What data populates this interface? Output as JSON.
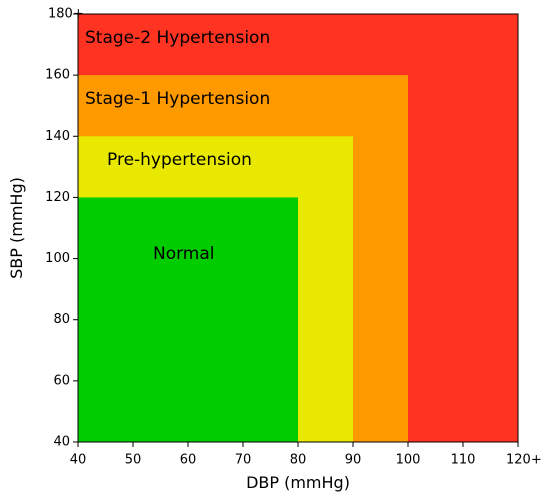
{
  "chart_data": {
    "type": "region",
    "x_label": "DBP (mmHg)",
    "y_label": "SBP (mmHg)",
    "xlim": [
      40,
      120
    ],
    "ylim": [
      40,
      180
    ],
    "xticks": [
      40,
      50,
      60,
      70,
      80,
      90,
      100,
      110,
      {
        "value": 120,
        "label": "120+"
      }
    ],
    "yticks": [
      40,
      60,
      80,
      100,
      120,
      140,
      160,
      {
        "value": 180,
        "label": "180+"
      }
    ],
    "series": [
      {
        "name": "Stage-2 Hypertension",
        "color": "#ff3322",
        "x": 120,
        "y": 180
      },
      {
        "name": "Stage-1 Hypertension",
        "color": "#ff9900",
        "x": 100,
        "y": 160
      },
      {
        "name": "Pre-hypertension",
        "color": "#e8e800",
        "x": 90,
        "y": 140
      },
      {
        "name": "Normal",
        "color": "#00cc00",
        "x": 80,
        "y": 120
      }
    ]
  }
}
